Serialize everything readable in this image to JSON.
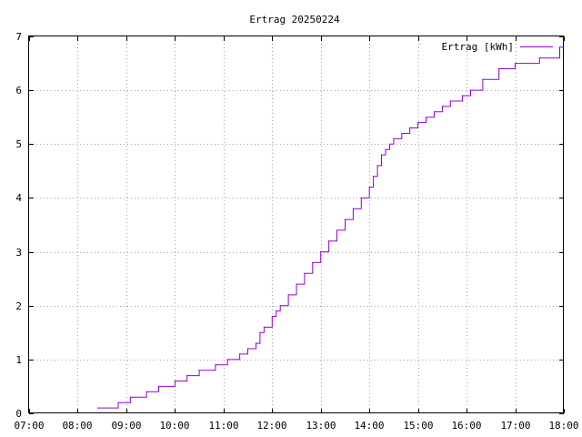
{
  "chart_data": {
    "type": "line",
    "title": "Ertrag 20250224",
    "xlabel": "",
    "ylabel": "",
    "xlim": [
      "07:00",
      "18:00"
    ],
    "ylim": [
      0,
      7
    ],
    "x_ticks": [
      "07:00",
      "08:00",
      "09:00",
      "10:00",
      "11:00",
      "12:00",
      "13:00",
      "14:00",
      "15:00",
      "16:00",
      "17:00",
      "18:00"
    ],
    "y_ticks": [
      "0",
      "1",
      "2",
      "3",
      "4",
      "5",
      "6",
      "7"
    ],
    "grid": true,
    "legend_position": "top-right",
    "series_color": "#9400d3",
    "series": [
      {
        "name": "Ertrag [kWh]",
        "x": [
          "08:25",
          "08:50",
          "09:05",
          "09:25",
          "09:40",
          "10:00",
          "10:15",
          "10:30",
          "10:50",
          "11:05",
          "11:20",
          "11:30",
          "11:40",
          "11:45",
          "11:50",
          "12:00",
          "12:05",
          "12:10",
          "12:20",
          "12:30",
          "12:40",
          "12:50",
          "13:00",
          "13:10",
          "13:20",
          "13:30",
          "13:40",
          "13:50",
          "14:00",
          "14:05",
          "14:10",
          "14:15",
          "14:20",
          "14:25",
          "14:30",
          "14:40",
          "14:50",
          "15:00",
          "15:10",
          "15:20",
          "15:30",
          "15:40",
          "15:55",
          "16:05",
          "16:20",
          "16:40",
          "17:00",
          "17:30",
          "17:55"
        ],
        "values": [
          0.1,
          0.2,
          0.3,
          0.4,
          0.5,
          0.6,
          0.7,
          0.8,
          0.9,
          1.0,
          1.1,
          1.2,
          1.3,
          1.5,
          1.6,
          1.8,
          1.9,
          2.0,
          2.2,
          2.4,
          2.6,
          2.8,
          3.0,
          3.2,
          3.4,
          3.6,
          3.8,
          4.0,
          4.2,
          4.4,
          4.6,
          4.8,
          4.9,
          5.0,
          5.1,
          5.2,
          5.3,
          5.4,
          5.5,
          5.6,
          5.7,
          5.8,
          5.9,
          6.0,
          6.2,
          6.4,
          6.5,
          6.6,
          6.8
        ]
      }
    ]
  }
}
